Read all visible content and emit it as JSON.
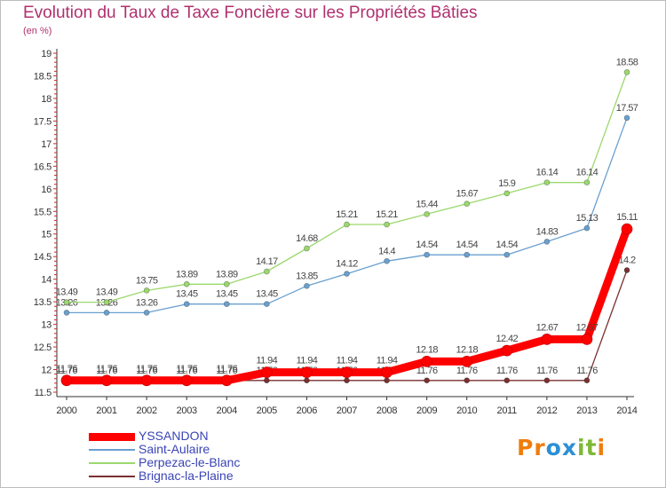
{
  "title": "Evolution du Taux de Taxe Foncière sur les Propriétés Bâties",
  "subtitle": "(en %)",
  "logo": {
    "letters": [
      "P",
      "r",
      "o",
      "x",
      "i",
      "t",
      "i"
    ],
    "colors": [
      "#ef7d0f",
      "#ef7d0f",
      "#2b8fd6",
      "#2b8fd6",
      "#7db838",
      "#7db838",
      "#ef7d0f"
    ]
  },
  "chart_data": {
    "type": "line",
    "title": "Evolution du Taux de Taxe Foncière sur les Propriétés Bâties",
    "ylabel": "(en %)",
    "xlabel": "",
    "x": [
      "2000",
      "2001",
      "2002",
      "2003",
      "2004",
      "2005",
      "2006",
      "2007",
      "2008",
      "2009",
      "2010",
      "2011",
      "2012",
      "2013",
      "2014"
    ],
    "ylim": [
      11.5,
      19
    ],
    "yticks": [
      "11.5",
      "12",
      "12.5",
      "13",
      "13.5",
      "14",
      "14.5",
      "15",
      "15.5",
      "16",
      "16.5",
      "17",
      "17.5",
      "18",
      "18.5",
      "19"
    ],
    "grid": false,
    "legend_position": "bottom-left",
    "series": [
      {
        "name": "YSSANDON",
        "color": "#ff0000",
        "emphasis": true,
        "values": [
          11.76,
          11.76,
          11.76,
          11.76,
          11.76,
          11.94,
          11.94,
          11.94,
          11.94,
          12.18,
          12.18,
          12.42,
          12.67,
          12.67,
          15.11
        ],
        "labels": [
          "11.76",
          "11.76",
          "11.76",
          "11.76",
          "11.76",
          "11.94",
          "11.94",
          "11.94",
          "11.94",
          "12.18",
          "12.18",
          "12.42",
          "12.67",
          "12.67",
          "15.11"
        ]
      },
      {
        "name": "Saint-Aulaire",
        "color": "#6aa0cf",
        "emphasis": false,
        "values": [
          13.26,
          13.26,
          13.26,
          13.45,
          13.45,
          13.45,
          13.85,
          14.12,
          14.4,
          14.54,
          14.54,
          14.54,
          14.83,
          15.13,
          17.57
        ],
        "labels": [
          "13.26",
          "13.26",
          "13.26",
          "13.45",
          "13.45",
          "13.45",
          "13.85",
          "14.12",
          "14.4",
          "14.54",
          "14.54",
          "14.54",
          "14.83",
          "15.13",
          "17.57"
        ]
      },
      {
        "name": "Perpezac-le-Blanc",
        "color": "#9bd86e",
        "emphasis": false,
        "values": [
          13.49,
          13.49,
          13.75,
          13.89,
          13.89,
          14.17,
          14.68,
          15.21,
          15.21,
          15.44,
          15.67,
          15.9,
          16.14,
          16.14,
          18.58
        ],
        "labels": [
          "13.49",
          "13.49",
          "13.75",
          "13.89",
          "13.89",
          "14.17",
          "14.68",
          "15.21",
          "15.21",
          "15.44",
          "15.67",
          "15.9",
          "16.14",
          "16.14",
          "18.58"
        ]
      },
      {
        "name": "Brignac-la-Plaine",
        "color": "#7a3030",
        "emphasis": false,
        "values": [
          11.76,
          11.76,
          11.76,
          11.76,
          11.76,
          11.76,
          11.76,
          11.76,
          11.76,
          11.76,
          11.76,
          11.76,
          11.76,
          11.76,
          14.2
        ],
        "labels": [
          "11.76",
          "11.76",
          "11.76",
          "11.76",
          "11.76",
          "11.76",
          "11.76",
          "11.76",
          "11.76",
          "11.76",
          "11.76",
          "11.76",
          "11.76",
          "11.76",
          "14.2"
        ]
      }
    ]
  }
}
